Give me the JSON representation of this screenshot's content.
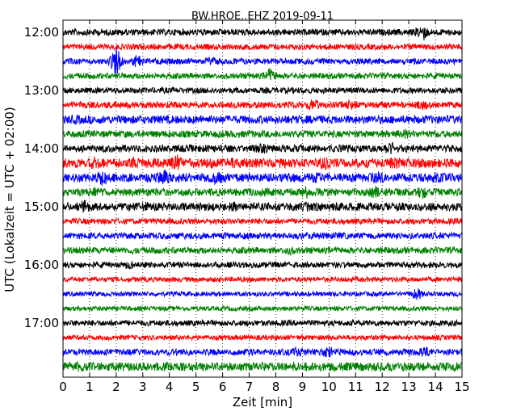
{
  "chart_data": {
    "type": "line",
    "title": "BW.HROE..EHZ 2019-09-11",
    "xlabel": "Zeit  [min]",
    "ylabel": "UTC (Lokalzeit = UTC + 02:00)",
    "xlim": [
      0,
      15
    ],
    "x_ticks": [
      "0",
      "1",
      "2",
      "3",
      "4",
      "5",
      "6",
      "7",
      "8",
      "9",
      "10",
      "11",
      "12",
      "13",
      "14",
      "15"
    ],
    "y_tick_labels": [
      "12:00",
      "13:00",
      "14:00",
      "15:00",
      "16:00",
      "17:00"
    ],
    "grid": "vertical dotted",
    "colors": [
      "#000000",
      "#ff0000",
      "#0000ff",
      "#008000"
    ],
    "series": [
      {
        "start": "12:00",
        "color": "#000000",
        "amplitude": 0.22,
        "bursts": [
          [
            13.5,
            0.7
          ]
        ]
      },
      {
        "start": "12:15",
        "color": "#ff0000",
        "amplitude": 0.2,
        "bursts": []
      },
      {
        "start": "12:30",
        "color": "#0000ff",
        "amplitude": 0.2,
        "bursts": [
          [
            2.0,
            1.3
          ],
          [
            2.8,
            0.5
          ],
          [
            5.6,
            0.35
          ]
        ]
      },
      {
        "start": "12:45",
        "color": "#008000",
        "amplitude": 0.2,
        "bursts": [
          [
            7.8,
            0.6
          ]
        ]
      },
      {
        "start": "13:00",
        "color": "#000000",
        "amplitude": 0.2,
        "bursts": []
      },
      {
        "start": "13:15",
        "color": "#ff0000",
        "amplitude": 0.22,
        "bursts": [
          [
            9.4,
            0.5
          ],
          [
            10.8,
            0.4
          ],
          [
            13.5,
            0.4
          ]
        ]
      },
      {
        "start": "13:30",
        "color": "#0000ff",
        "amplitude": 0.28,
        "bursts": [
          [
            0.5,
            0.35
          ]
        ]
      },
      {
        "start": "13:45",
        "color": "#008000",
        "amplitude": 0.24,
        "bursts": [
          [
            12.8,
            0.4
          ]
        ]
      },
      {
        "start": "14:00",
        "color": "#000000",
        "amplitude": 0.25,
        "bursts": [
          [
            7.5,
            0.4
          ],
          [
            12.3,
            0.5
          ]
        ]
      },
      {
        "start": "14:15",
        "color": "#ff0000",
        "amplitude": 0.32,
        "bursts": [
          [
            1.2,
            0.5
          ],
          [
            2.6,
            0.45
          ],
          [
            4.3,
            0.6
          ],
          [
            6.3,
            0.4
          ],
          [
            9.8,
            0.5
          ],
          [
            12.5,
            0.45
          ]
        ]
      },
      {
        "start": "14:30",
        "color": "#0000ff",
        "amplitude": 0.3,
        "bursts": [
          [
            1.5,
            0.6
          ],
          [
            3.8,
            0.6
          ],
          [
            5.8,
            0.5
          ],
          [
            9.5,
            0.45
          ],
          [
            11.8,
            0.5
          ],
          [
            14.0,
            0.4
          ]
        ]
      },
      {
        "start": "14:45",
        "color": "#008000",
        "amplitude": 0.26,
        "bursts": [
          [
            1.2,
            0.4
          ],
          [
            7.6,
            0.4
          ],
          [
            9.2,
            0.5
          ],
          [
            11.7,
            0.5
          ],
          [
            13.5,
            0.5
          ]
        ]
      },
      {
        "start": "15:00",
        "color": "#000000",
        "amplitude": 0.28,
        "bursts": [
          [
            0.8,
            0.5
          ],
          [
            3.1,
            0.4
          ],
          [
            6.4,
            0.4
          ],
          [
            9.2,
            0.35
          ]
        ]
      },
      {
        "start": "15:15",
        "color": "#ff0000",
        "amplitude": 0.2,
        "bursts": []
      },
      {
        "start": "15:30",
        "color": "#0000ff",
        "amplitude": 0.22,
        "bursts": [
          [
            9.5,
            0.3
          ]
        ]
      },
      {
        "start": "15:45",
        "color": "#008000",
        "amplitude": 0.22,
        "bursts": [
          [
            8.5,
            0.35
          ]
        ]
      },
      {
        "start": "16:00",
        "color": "#000000",
        "amplitude": 0.2,
        "bursts": [
          [
            2.5,
            0.3
          ]
        ]
      },
      {
        "start": "16:15",
        "color": "#ff0000",
        "amplitude": 0.17,
        "bursts": []
      },
      {
        "start": "16:30",
        "color": "#0000ff",
        "amplitude": 0.16,
        "bursts": [
          [
            13.3,
            0.5
          ]
        ]
      },
      {
        "start": "16:45",
        "color": "#008000",
        "amplitude": 0.16,
        "bursts": []
      },
      {
        "start": "17:00",
        "color": "#000000",
        "amplitude": 0.2,
        "bursts": []
      },
      {
        "start": "17:15",
        "color": "#ff0000",
        "amplitude": 0.17,
        "bursts": []
      },
      {
        "start": "17:30",
        "color": "#0000ff",
        "amplitude": 0.22,
        "bursts": [
          [
            8.8,
            0.4
          ],
          [
            10.0,
            0.5
          ],
          [
            13.6,
            0.4
          ]
        ]
      },
      {
        "start": "17:45",
        "color": "#008000",
        "amplitude": 0.3,
        "bursts": [
          [
            0.5,
            0.4
          ],
          [
            9.4,
            0.3
          ]
        ]
      }
    ]
  }
}
